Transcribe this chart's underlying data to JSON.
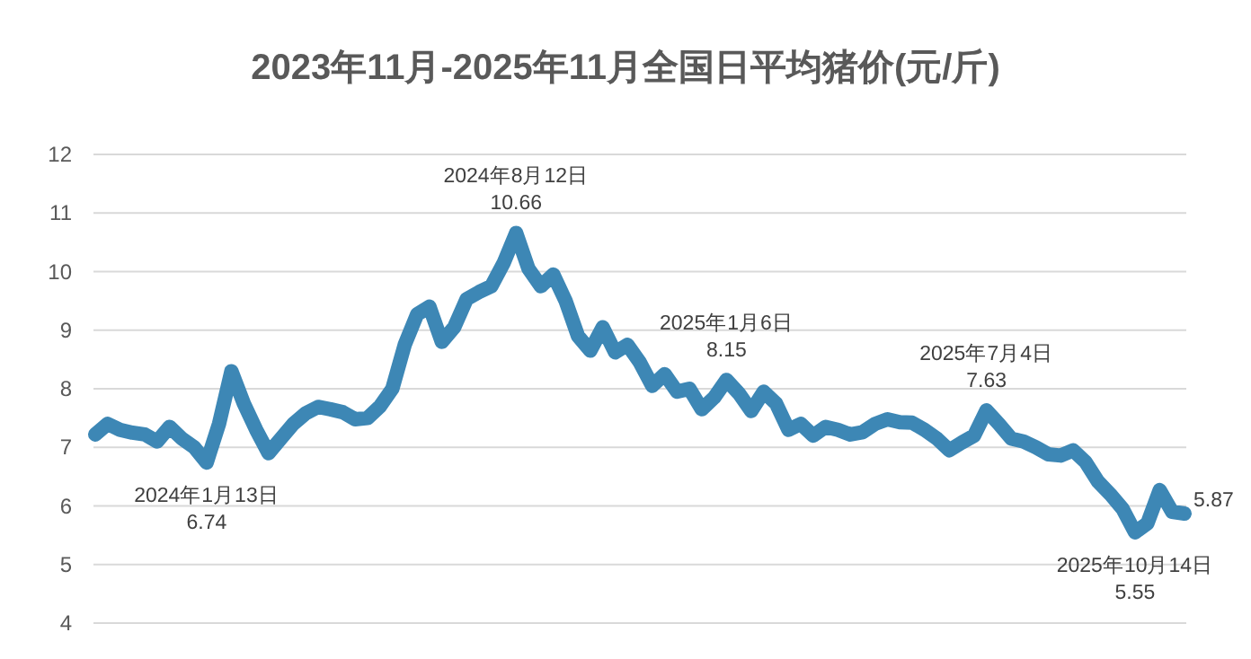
{
  "chart_data": {
    "type": "line",
    "title": "2023年11月-2025年11月全国日平均猪价(元/斤)",
    "categories": [
      null,
      null,
      null,
      null,
      null,
      null,
      null,
      null,
      null,
      null,
      null,
      null,
      null,
      null,
      null,
      null,
      null,
      null,
      null,
      null,
      null,
      null,
      null,
      null,
      null,
      null,
      null,
      null,
      null,
      null,
      null,
      null,
      null,
      null,
      null,
      null,
      null,
      null,
      null,
      null,
      null,
      null,
      null,
      null,
      null,
      null,
      null,
      null,
      null,
      null,
      null,
      null,
      null,
      null,
      null,
      null,
      null,
      null,
      null,
      null,
      null,
      null,
      null,
      null,
      null,
      null,
      null,
      null,
      null,
      null,
      null,
      null,
      null,
      null,
      null,
      null,
      null,
      null,
      null,
      null,
      null,
      null,
      null,
      null,
      null,
      null,
      null,
      null,
      null
    ],
    "series": [
      {
        "color": "#3d87b5",
        "values": [
          7.22,
          7.4,
          7.3,
          7.25,
          7.22,
          7.1,
          7.35,
          7.15,
          7.0,
          6.74,
          7.4,
          8.3,
          7.75,
          7.3,
          6.9,
          7.15,
          7.4,
          7.58,
          7.69,
          7.65,
          7.6,
          7.48,
          7.5,
          7.7,
          8.0,
          8.75,
          9.27,
          9.4,
          8.8,
          9.05,
          9.53,
          9.65,
          9.75,
          10.15,
          10.66,
          10.05,
          9.75,
          9.95,
          9.5,
          8.9,
          8.65,
          9.05,
          8.62,
          8.75,
          8.45,
          8.05,
          8.25,
          7.95,
          8.0,
          7.65,
          7.85,
          8.15,
          7.92,
          7.62,
          7.95,
          7.75,
          7.3,
          7.4,
          7.2,
          7.35,
          7.3,
          7.22,
          7.26,
          7.4,
          7.48,
          7.43,
          7.42,
          7.3,
          7.15,
          6.95,
          7.08,
          7.2,
          7.63,
          7.4,
          7.15,
          7.1,
          7.0,
          6.88,
          6.86,
          6.95,
          6.75,
          6.42,
          6.2,
          5.95,
          5.55,
          5.7,
          6.27,
          5.9,
          5.87
        ],
        "value_labels": [
          null,
          null,
          null,
          null,
          null,
          null,
          null,
          null,
          null,
          null,
          null,
          null,
          null,
          null,
          null,
          null,
          null,
          null,
          null,
          null,
          null,
          null,
          null,
          null,
          null,
          null,
          null,
          null,
          null,
          null,
          null,
          null,
          null,
          null,
          null,
          null,
          null,
          null,
          null,
          null,
          null,
          null,
          null,
          null,
          null,
          null,
          null,
          null,
          null,
          null,
          null,
          null,
          null,
          null,
          null,
          null,
          null,
          null,
          null,
          null,
          null,
          null,
          null,
          null,
          null,
          null,
          null,
          null,
          null,
          null,
          null,
          null,
          null,
          null,
          null,
          null,
          null,
          null,
          null,
          null,
          null,
          null,
          null,
          null,
          null,
          null,
          null,
          null,
          "5.87"
        ]
      }
    ],
    "ylim": [
      4,
      12
    ],
    "yticks": [
      4,
      5,
      6,
      7,
      8,
      9,
      10,
      11,
      12
    ],
    "tick_labels": "y",
    "grid": "y",
    "line_style": "solid",
    "annotations": [
      {
        "text": "2024年1月13日\n6.74",
        "y": 6.74
      },
      {
        "text": "2024年8月12日\n10.66",
        "y": 10.66
      },
      {
        "text": "2025年1月6日\n8.15",
        "y": 8.15
      },
      {
        "text": "2025年7月4日\n7.63",
        "y": 7.63
      },
      {
        "text": "2025年10月14日\n5.55",
        "y": 5.55
      }
    ]
  }
}
